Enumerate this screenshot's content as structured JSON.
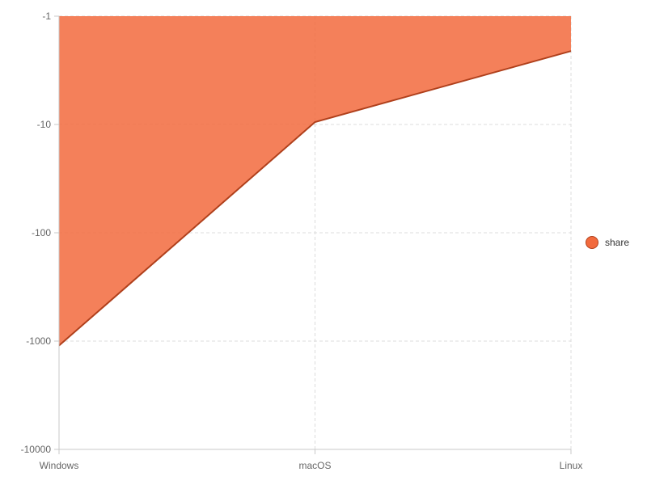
{
  "chart_data": {
    "type": "area",
    "categories": [
      "Windows",
      "macOS",
      "Linux"
    ],
    "series": [
      {
        "name": "share",
        "values": [
          -1100,
          -9.5,
          -2.1
        ]
      }
    ],
    "y_axis": {
      "scale": "log",
      "ticks": [
        "-1",
        "-10",
        "-100",
        "-1000",
        "-10000"
      ],
      "tick_values": [
        -1,
        -10,
        -100,
        -1000,
        -10000
      ],
      "range": [
        -10000,
        -1
      ]
    },
    "grid": true,
    "legend_position": "right"
  },
  "colors": {
    "fill": "#f26a3d",
    "line": "#b0401c",
    "grid": "#dcdcdc",
    "axis": "#c8c8c8",
    "tick_text": "#666666",
    "legend_text": "#333333"
  }
}
